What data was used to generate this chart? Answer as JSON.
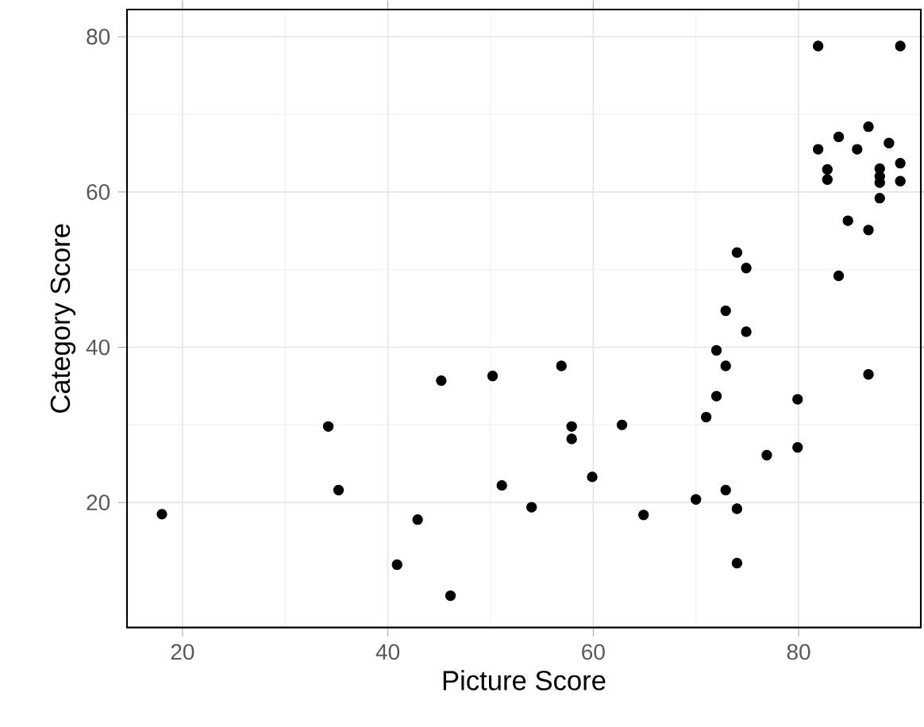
{
  "chart_data": {
    "type": "scatter",
    "xlabel": "Picture Score",
    "ylabel": "Category Score",
    "xlim": [
      14.6,
      91.9
    ],
    "ylim": [
      3.9,
      83.5
    ],
    "xticks": [
      20,
      40,
      60,
      80
    ],
    "yticks": [
      20,
      40,
      60,
      80
    ],
    "grid": true,
    "marker": "circle",
    "series": [
      {
        "color": "#000000",
        "x": [
          18,
          34.2,
          35.2,
          40.9,
          42.9,
          45.2,
          46.1,
          50.2,
          51.1,
          54,
          56.9,
          57.9,
          57.9,
          59.9,
          62.8,
          64.9,
          70,
          71,
          72,
          72,
          72.9,
          72.9,
          72.9,
          74,
          74,
          74,
          74.9,
          74.9,
          76.9,
          79.9,
          79.9,
          81.9,
          81.9,
          82.8,
          82.8,
          83.9,
          83.9,
          84.8,
          85.7,
          86.8,
          86.8,
          86.8,
          87.9,
          87.9,
          87.9,
          87.9,
          88.8,
          89.9,
          89.9,
          89.9
        ],
        "values": [
          18.5,
          29.8,
          21.6,
          12,
          17.8,
          35.7,
          8,
          36.3,
          22.2,
          19.4,
          37.6,
          29.8,
          28.2,
          23.3,
          30,
          18.4,
          20.4,
          31,
          33.7,
          39.6,
          37.6,
          44.7,
          21.6,
          19.2,
          12.2,
          52.2,
          50.2,
          42,
          26.1,
          33.3,
          27.1,
          78.8,
          65.5,
          62.9,
          61.6,
          67.1,
          49.2,
          56.3,
          65.5,
          68.4,
          55.1,
          36.5,
          63,
          62,
          61.2,
          59.2,
          66.3,
          78.8,
          63.7,
          61.4
        ]
      }
    ]
  }
}
